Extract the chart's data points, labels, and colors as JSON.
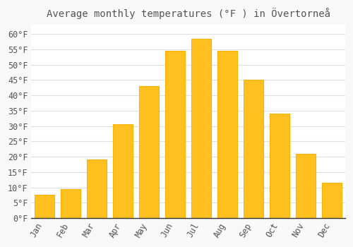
{
  "title": "Average monthly temperatures (°F ) in Övertorneå",
  "months": [
    "Jan",
    "Feb",
    "Mar",
    "Apr",
    "May",
    "Jun",
    "Jul",
    "Aug",
    "Sep",
    "Oct",
    "Nov",
    "Dec"
  ],
  "values": [
    7.5,
    9.5,
    19,
    30.5,
    43,
    54.5,
    58.5,
    54.5,
    45,
    34,
    21,
    11.5
  ],
  "bar_color": "#FFC020",
  "bar_edge_color": "#FFB000",
  "plot_background": "#FFFFFF",
  "fig_background": "#F8F8F8",
  "grid_color": "#E0E0E0",
  "text_color": "#555555",
  "axis_color": "#333333",
  "ylim": [
    0,
    63
  ],
  "yticks": [
    0,
    5,
    10,
    15,
    20,
    25,
    30,
    35,
    40,
    45,
    50,
    55,
    60
  ],
  "title_fontsize": 10,
  "tick_fontsize": 8.5
}
